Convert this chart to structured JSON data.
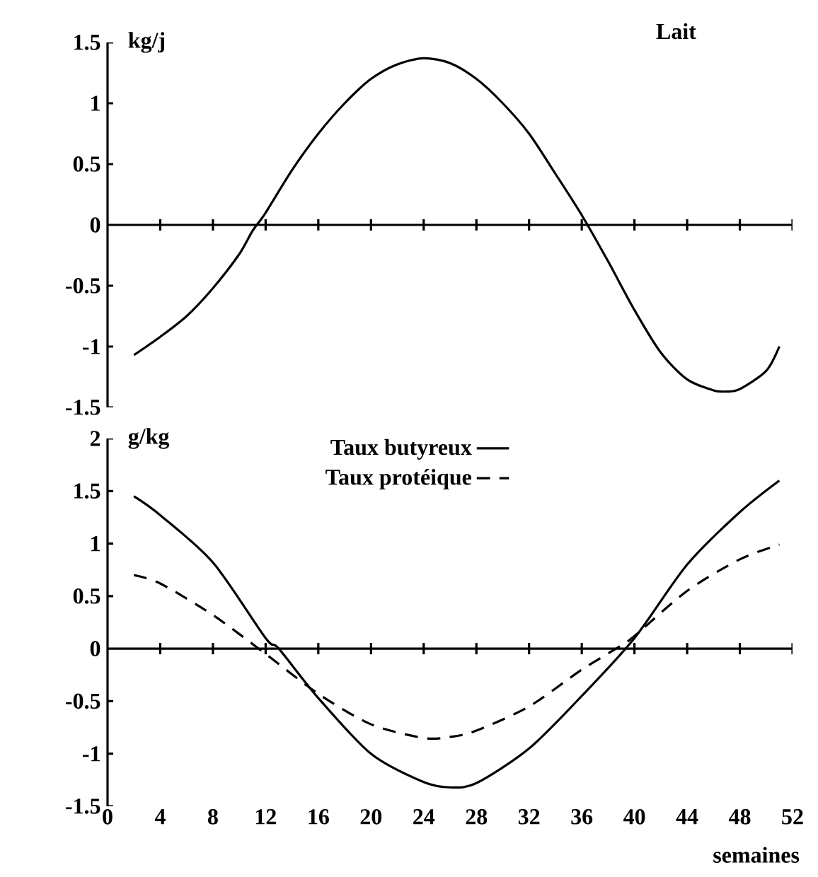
{
  "chart_data": [
    {
      "type": "line",
      "title": "Lait",
      "ylabel": "kg/j",
      "x": [
        2,
        4,
        6,
        8,
        10,
        11,
        12,
        14,
        16,
        18,
        20,
        22,
        24,
        26,
        28,
        30,
        32,
        34,
        36,
        38,
        40,
        42,
        44,
        46,
        47,
        48,
        50,
        51
      ],
      "series": [
        {
          "color": "#000000",
          "line_style": "solid",
          "values": [
            -1.07,
            -0.92,
            -0.75,
            -0.52,
            -0.24,
            -0.05,
            0.1,
            0.45,
            0.75,
            1.0,
            1.2,
            1.32,
            1.37,
            1.33,
            1.2,
            1.0,
            0.75,
            0.42,
            0.08,
            -0.3,
            -0.7,
            -1.05,
            -1.27,
            -1.36,
            -1.37,
            -1.35,
            -1.2,
            -1.0
          ]
        }
      ],
      "xlim": [
        0,
        52
      ],
      "ylim": [
        -1.5,
        1.5
      ],
      "xticks": [
        0,
        4,
        8,
        12,
        16,
        20,
        24,
        28,
        32,
        36,
        40,
        44,
        48,
        52
      ],
      "yticks": [
        -1.5,
        -1,
        -0.5,
        0,
        0.5,
        1,
        1.5
      ],
      "tick_labels": "y",
      "legend": false
    },
    {
      "type": "line",
      "ylabel": "g/kg",
      "xlabel": "semaines",
      "series": [
        {
          "name": "Taux butyreux",
          "color": "#000000",
          "line_style": "solid",
          "x": [
            2,
            4,
            8,
            12,
            13,
            16,
            20,
            24,
            26,
            28,
            32,
            36,
            40,
            44,
            48,
            51
          ],
          "values": [
            1.45,
            1.27,
            0.82,
            0.1,
            0,
            -0.47,
            -1.0,
            -1.27,
            -1.32,
            -1.28,
            -0.95,
            -0.45,
            0.1,
            0.8,
            1.3,
            1.6
          ]
        },
        {
          "name": "Taux protéique",
          "color": "#000000",
          "line_style": "dashed",
          "x": [
            2,
            4,
            8,
            12,
            16,
            20,
            24,
            26,
            28,
            32,
            36,
            39,
            40,
            44,
            48,
            51
          ],
          "values": [
            0.7,
            0.62,
            0.32,
            -0.05,
            -0.43,
            -0.72,
            -0.85,
            -0.84,
            -0.78,
            -0.55,
            -0.2,
            0.03,
            0.12,
            0.55,
            0.85,
            0.99
          ]
        }
      ],
      "xlim": [
        0,
        52
      ],
      "ylim": [
        -1.5,
        2
      ],
      "xticks": [
        0,
        4,
        8,
        12,
        16,
        20,
        24,
        28,
        32,
        36,
        40,
        44,
        48,
        52
      ],
      "yticks": [
        -1.5,
        -1,
        -0.5,
        0,
        0.5,
        1,
        1.5,
        2
      ],
      "legend": "top"
    }
  ]
}
